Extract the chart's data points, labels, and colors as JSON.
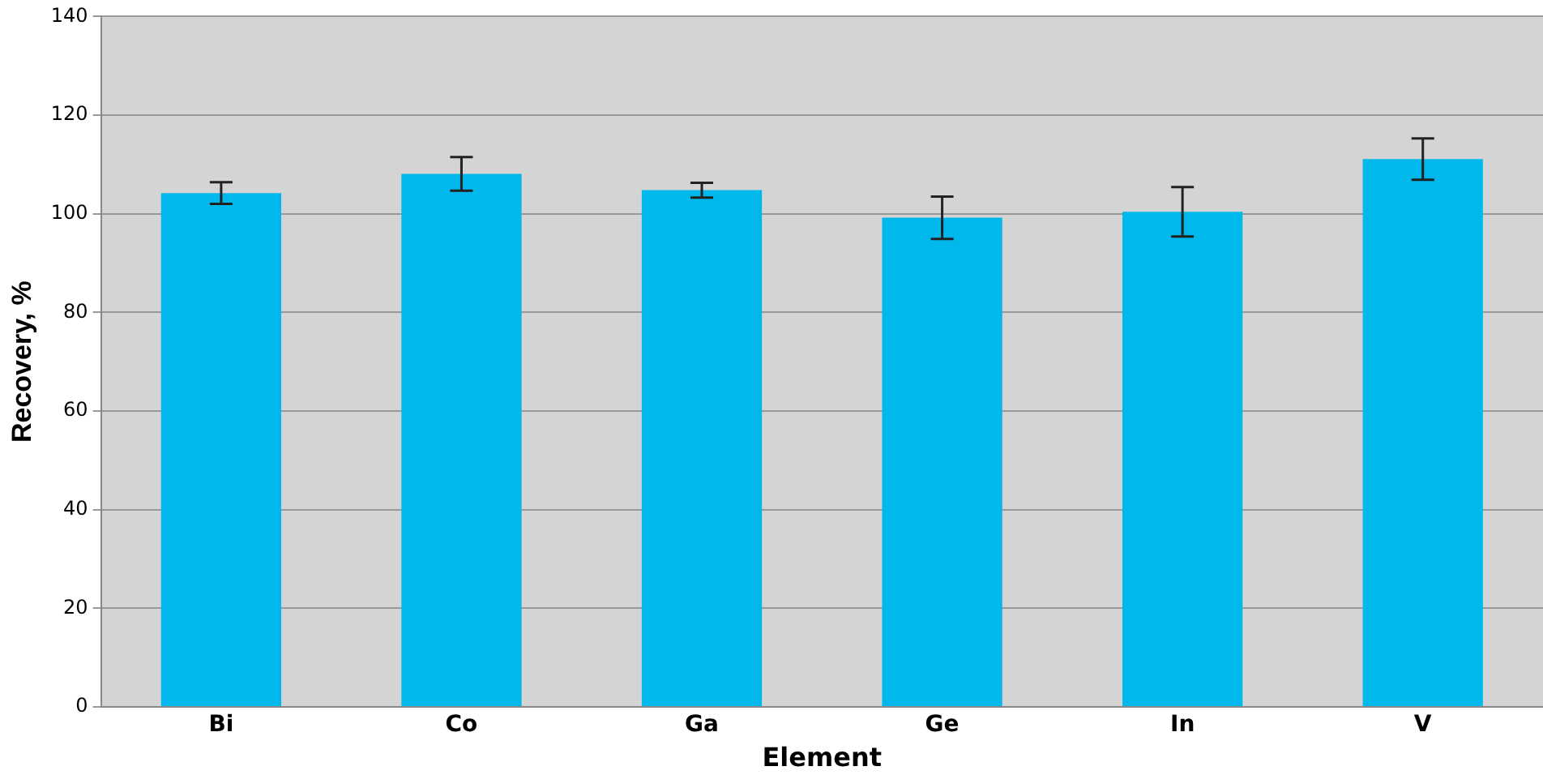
{
  "chart_data": {
    "type": "bar",
    "xlabel": "Element",
    "ylabel": "Recovery, %",
    "categories": [
      "Bi",
      "Co",
      "Ga",
      "Ge",
      "In",
      "V"
    ],
    "values": [
      104.2,
      108.1,
      104.8,
      99.2,
      100.4,
      111.1
    ],
    "errors": [
      2.2,
      3.4,
      1.5,
      4.3,
      5.0,
      4.2
    ],
    "color": "#00b8ec",
    "ylim": [
      0,
      140
    ],
    "yticks": [
      0,
      20,
      40,
      60,
      80,
      100,
      120,
      140
    ],
    "grid": "y"
  }
}
